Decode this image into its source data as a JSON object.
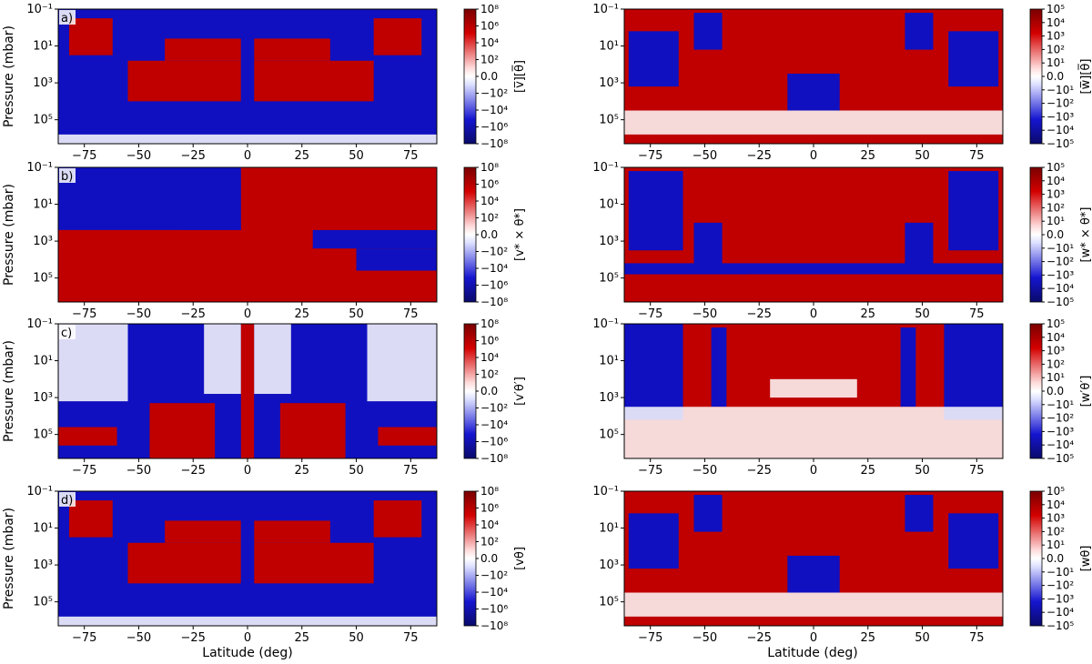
{
  "figure": {
    "xlabel": "Latitude (deg)",
    "ylabel": "Pressure (mbar)",
    "x_ticks": [
      "−75",
      "−50",
      "−25",
      "0",
      "25",
      "50",
      "75"
    ],
    "x_tick_values": [
      -75,
      -50,
      -25,
      0,
      25,
      50,
      75
    ],
    "xlim": [
      -87,
      87
    ],
    "y_ticks": [
      "10⁻¹",
      "10¹",
      "10³",
      "10⁵"
    ],
    "y_tick_log_values": [
      -1,
      1,
      3,
      5
    ],
    "ylim_log": [
      -1,
      6.3
    ],
    "colors": {
      "positive": "#c00000",
      "negative": "#1010c0",
      "zero": "#ffffff"
    }
  },
  "chart_data": [
    {
      "type": "heatmap",
      "panel_label": "a)",
      "column": "left",
      "row": 0,
      "colorbar_label": "[v̅][θ̅]",
      "colorbar_ticks": [
        "10⁸",
        "10⁶",
        "10⁴",
        "10²",
        "0.0",
        "−10²",
        "−10⁴",
        "−10⁶",
        "−10⁸"
      ]
    },
    {
      "type": "heatmap",
      "panel_label": "",
      "column": "right",
      "row": 0,
      "colorbar_label": "[w̅][θ̅]",
      "colorbar_ticks": [
        "10⁵",
        "10⁴",
        "10³",
        "10²",
        "10¹",
        "0.0",
        "−10¹",
        "−10²",
        "−10³",
        "−10⁴",
        "−10⁵"
      ]
    },
    {
      "type": "heatmap",
      "panel_label": "b)",
      "column": "left",
      "row": 1,
      "colorbar_label": "[v* × θ*]",
      "colorbar_ticks": [
        "10⁸",
        "10⁶",
        "10⁴",
        "10²",
        "0.0",
        "−10²",
        "−10⁴",
        "−10⁶",
        "−10⁸"
      ]
    },
    {
      "type": "heatmap",
      "panel_label": "",
      "column": "right",
      "row": 1,
      "colorbar_label": "[w* × θ*]",
      "colorbar_ticks": [
        "10⁵",
        "10⁴",
        "10³",
        "10²",
        "10¹",
        "0.0",
        "−10¹",
        "−10²",
        "−10³",
        "−10⁴",
        "−10⁵"
      ]
    },
    {
      "type": "heatmap",
      "panel_label": "c)",
      "column": "left",
      "row": 2,
      "colorbar_label": "[v′θ′]",
      "colorbar_ticks": [
        "10⁸",
        "10⁶",
        "10⁴",
        "10²",
        "0.0",
        "−10²",
        "−10⁴",
        "−10⁶",
        "−10⁸"
      ]
    },
    {
      "type": "heatmap",
      "panel_label": "",
      "column": "right",
      "row": 2,
      "colorbar_label": "[w′θ′]",
      "colorbar_ticks": [
        "10⁵",
        "10⁴",
        "10³",
        "10²",
        "10¹",
        "0.0",
        "−10¹",
        "−10²",
        "−10³",
        "−10⁴",
        "−10⁵"
      ]
    },
    {
      "type": "heatmap",
      "panel_label": "d)",
      "column": "left",
      "row": 3,
      "colorbar_label": "[vθ]",
      "colorbar_ticks": [
        "10⁸",
        "10⁶",
        "10⁴",
        "10²",
        "0.0",
        "−10²",
        "−10⁴",
        "−10⁶",
        "−10⁸"
      ]
    },
    {
      "type": "heatmap",
      "panel_label": "",
      "column": "right",
      "row": 3,
      "colorbar_label": "[wθ]",
      "colorbar_ticks": [
        "10⁵",
        "10⁴",
        "10³",
        "10²",
        "10¹",
        "0.0",
        "−10¹",
        "−10²",
        "−10³",
        "−10⁴",
        "−10⁵"
      ]
    }
  ]
}
